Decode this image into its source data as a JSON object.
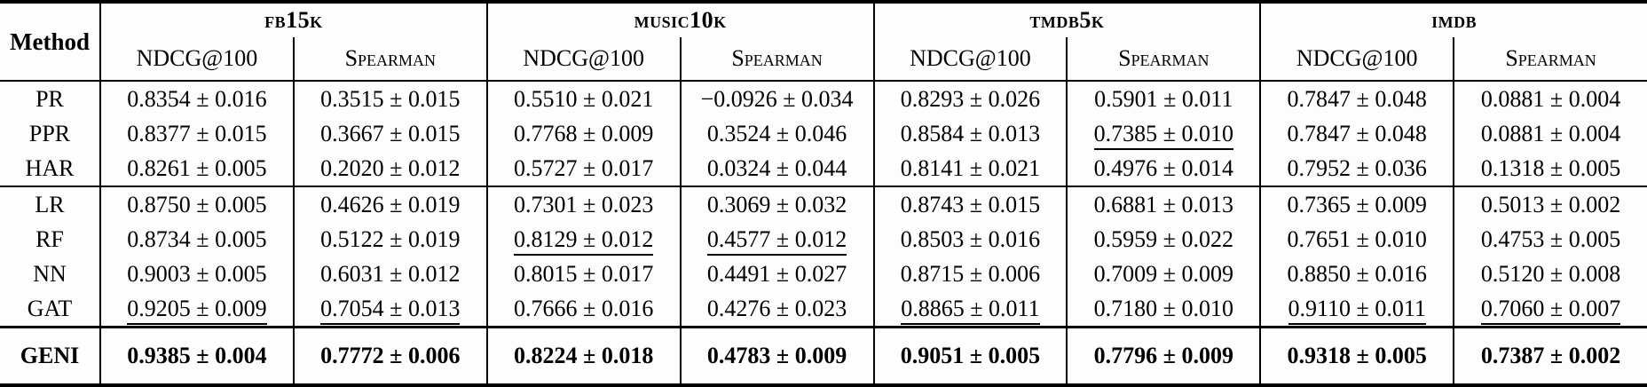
{
  "table": {
    "method_header": "Method",
    "groups": [
      {
        "name": "fb15k"
      },
      {
        "name": "music10k"
      },
      {
        "name": "tmdb5k"
      },
      {
        "name": "imdb"
      }
    ],
    "subheaders": {
      "ndcg": "NDCG@100",
      "spearman": "Spearman"
    },
    "sections": [
      {
        "rows": [
          {
            "method": "PR",
            "cells": [
              "0.8354 ± 0.016",
              "0.3515 ± 0.015",
              "0.5510 ± 0.021",
              "−0.0926 ± 0.034",
              "0.8293 ± 0.026",
              "0.5901 ± 0.011",
              "0.7847 ± 0.048",
              "0.0881 ± 0.004"
            ]
          },
          {
            "method": "PPR",
            "cells": [
              "0.8377 ± 0.015",
              "0.3667 ± 0.015",
              "0.7768 ± 0.009",
              "0.3524 ± 0.046",
              "0.8584 ± 0.013",
              "0.7385 ± 0.010",
              "0.7847 ± 0.048",
              "0.0881 ± 0.004"
            ]
          },
          {
            "method": "HAR",
            "cells": [
              "0.8261 ± 0.005",
              "0.2020 ± 0.012",
              "0.5727 ± 0.017",
              "0.0324 ± 0.044",
              "0.8141 ± 0.021",
              "0.4976 ± 0.014",
              "0.7952 ± 0.036",
              "0.1318 ± 0.005"
            ]
          }
        ]
      },
      {
        "rows": [
          {
            "method": "LR",
            "cells": [
              "0.8750 ± 0.005",
              "0.4626 ± 0.019",
              "0.7301 ± 0.023",
              "0.3069 ± 0.032",
              "0.8743 ± 0.015",
              "0.6881 ± 0.013",
              "0.7365 ± 0.009",
              "0.5013 ± 0.002"
            ]
          },
          {
            "method": "RF",
            "cells": [
              "0.8734 ± 0.005",
              "0.5122 ± 0.019",
              "0.8129 ± 0.012",
              "0.4577 ± 0.012",
              "0.8503 ± 0.016",
              "0.5959 ± 0.022",
              "0.7651 ± 0.010",
              "0.4753 ± 0.005"
            ]
          },
          {
            "method": "NN",
            "cells": [
              "0.9003 ± 0.005",
              "0.6031 ± 0.012",
              "0.8015 ± 0.017",
              "0.4491 ± 0.027",
              "0.8715 ± 0.006",
              "0.7009 ± 0.009",
              "0.8850 ± 0.016",
              "0.5120 ± 0.008"
            ]
          },
          {
            "method": "GAT",
            "cells": [
              "0.9205 ± 0.009",
              "0.7054 ± 0.013",
              "0.7666 ± 0.016",
              "0.4276 ± 0.023",
              "0.8865 ± 0.011",
              "0.7180 ± 0.010",
              "0.9110 ± 0.011",
              "0.7060 ± 0.007"
            ]
          }
        ]
      },
      {
        "rows": [
          {
            "method": "GENI",
            "cells": [
              "0.9385 ± 0.004",
              "0.7772 ± 0.006",
              "0.8224 ± 0.018",
              "0.4783 ± 0.009",
              "0.9051 ± 0.005",
              "0.7796 ± 0.009",
              "0.9318 ± 0.005",
              "0.7387 ± 0.002"
            ]
          }
        ]
      }
    ]
  }
}
